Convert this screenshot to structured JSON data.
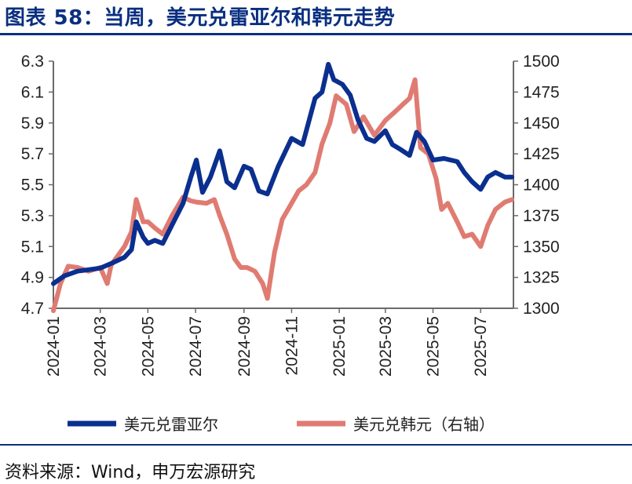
{
  "header": {
    "title": "图表 58：当周，美元兑雷亚尔和韩元走势"
  },
  "footer": {
    "source": "资料来源：Wind，申万宏源研究"
  },
  "colors": {
    "brand": "#0a2f80",
    "series_brl": "#0a2f8f",
    "series_krw": "#e07b72"
  },
  "chart_data": {
    "type": "line",
    "title": "当周，美元兑雷亚尔和韩元走势",
    "x_ticks": [
      "2024-01",
      "2024-03",
      "2024-05",
      "2024-07",
      "2024-09",
      "2024-11",
      "2025-01",
      "2025-03",
      "2025-05",
      "2025-07"
    ],
    "y_left": {
      "range": [
        4.7,
        6.3
      ],
      "ticks": [
        "4.7",
        "4.9",
        "5.1",
        "5.3",
        "5.5",
        "5.7",
        "5.9",
        "6.1",
        "6.3"
      ]
    },
    "y_right": {
      "range": [
        1300,
        1500
      ],
      "ticks": [
        "1300",
        "1325",
        "1350",
        "1375",
        "1400",
        "1425",
        "1450",
        "1475",
        "1500"
      ]
    },
    "grid": false,
    "legend_position": "bottom",
    "series": [
      {
        "name": "美元兑雷亚尔",
        "axis": "left",
        "points": [
          [
            "2024-01-01",
            4.86
          ],
          [
            "2024-01-15",
            4.91
          ],
          [
            "2024-02-01",
            4.94
          ],
          [
            "2024-02-15",
            4.95
          ],
          [
            "2024-03-01",
            4.96
          ],
          [
            "2024-03-15",
            4.99
          ],
          [
            "2024-04-01",
            5.03
          ],
          [
            "2024-04-10",
            5.08
          ],
          [
            "2024-04-16",
            5.26
          ],
          [
            "2024-04-25",
            5.16
          ],
          [
            "2024-05-01",
            5.12
          ],
          [
            "2024-05-10",
            5.14
          ],
          [
            "2024-05-20",
            5.12
          ],
          [
            "2024-06-01",
            5.24
          ],
          [
            "2024-06-15",
            5.38
          ],
          [
            "2024-06-25",
            5.55
          ],
          [
            "2024-07-02",
            5.66
          ],
          [
            "2024-07-10",
            5.45
          ],
          [
            "2024-07-20",
            5.55
          ],
          [
            "2024-08-01",
            5.72
          ],
          [
            "2024-08-10",
            5.52
          ],
          [
            "2024-08-20",
            5.48
          ],
          [
            "2024-09-01",
            5.62
          ],
          [
            "2024-09-10",
            5.6
          ],
          [
            "2024-09-20",
            5.46
          ],
          [
            "2024-10-01",
            5.44
          ],
          [
            "2024-10-15",
            5.62
          ],
          [
            "2024-11-01",
            5.8
          ],
          [
            "2024-11-15",
            5.76
          ],
          [
            "2024-12-01",
            6.06
          ],
          [
            "2024-12-10",
            6.1
          ],
          [
            "2024-12-18",
            6.28
          ],
          [
            "2024-12-25",
            6.18
          ],
          [
            "2025-01-05",
            6.15
          ],
          [
            "2025-01-15",
            6.08
          ],
          [
            "2025-01-25",
            5.92
          ],
          [
            "2025-02-05",
            5.8
          ],
          [
            "2025-02-15",
            5.78
          ],
          [
            "2025-03-01",
            5.85
          ],
          [
            "2025-03-10",
            5.76
          ],
          [
            "2025-03-20",
            5.73
          ],
          [
            "2025-04-01",
            5.69
          ],
          [
            "2025-04-10",
            5.84
          ],
          [
            "2025-04-20",
            5.78
          ],
          [
            "2025-05-01",
            5.66
          ],
          [
            "2025-05-15",
            5.67
          ],
          [
            "2025-06-01",
            5.65
          ],
          [
            "2025-06-10",
            5.58
          ],
          [
            "2025-06-20",
            5.52
          ],
          [
            "2025-07-01",
            5.47
          ],
          [
            "2025-07-10",
            5.55
          ],
          [
            "2025-07-20",
            5.58
          ],
          [
            "2025-08-01",
            5.55
          ],
          [
            "2025-08-10",
            5.55
          ]
        ]
      },
      {
        "name": "美元兑韩元（右轴）",
        "axis": "right",
        "points": [
          [
            "2024-01-01",
            1298
          ],
          [
            "2024-01-10",
            1320
          ],
          [
            "2024-01-20",
            1334
          ],
          [
            "2024-02-01",
            1333
          ],
          [
            "2024-02-15",
            1330
          ],
          [
            "2024-03-01",
            1333
          ],
          [
            "2024-03-10",
            1320
          ],
          [
            "2024-03-15",
            1335
          ],
          [
            "2024-04-01",
            1350
          ],
          [
            "2024-04-10",
            1362
          ],
          [
            "2024-04-16",
            1388
          ],
          [
            "2024-04-25",
            1370
          ],
          [
            "2024-05-01",
            1370
          ],
          [
            "2024-05-10",
            1365
          ],
          [
            "2024-05-20",
            1360
          ],
          [
            "2024-06-01",
            1375
          ],
          [
            "2024-06-15",
            1390
          ],
          [
            "2024-06-25",
            1387
          ],
          [
            "2024-07-02",
            1386
          ],
          [
            "2024-07-15",
            1385
          ],
          [
            "2024-07-25",
            1388
          ],
          [
            "2024-08-01",
            1375
          ],
          [
            "2024-08-10",
            1360
          ],
          [
            "2024-08-20",
            1340
          ],
          [
            "2024-08-28",
            1333
          ],
          [
            "2024-09-05",
            1333
          ],
          [
            "2024-09-15",
            1330
          ],
          [
            "2024-09-25",
            1320
          ],
          [
            "2024-10-01",
            1308
          ],
          [
            "2024-10-10",
            1345
          ],
          [
            "2024-10-20",
            1372
          ],
          [
            "2024-11-01",
            1385
          ],
          [
            "2024-11-10",
            1395
          ],
          [
            "2024-11-20",
            1400
          ],
          [
            "2024-12-01",
            1410
          ],
          [
            "2024-12-10",
            1433
          ],
          [
            "2024-12-20",
            1450
          ],
          [
            "2024-12-28",
            1472
          ],
          [
            "2025-01-10",
            1465
          ],
          [
            "2025-01-20",
            1443
          ],
          [
            "2025-02-01",
            1455
          ],
          [
            "2025-02-15",
            1440
          ],
          [
            "2025-03-01",
            1452
          ],
          [
            "2025-03-15",
            1460
          ],
          [
            "2025-03-25",
            1466
          ],
          [
            "2025-04-01",
            1470
          ],
          [
            "2025-04-08",
            1485
          ],
          [
            "2025-04-15",
            1430
          ],
          [
            "2025-04-25",
            1425
          ],
          [
            "2025-05-05",
            1405
          ],
          [
            "2025-05-12",
            1380
          ],
          [
            "2025-05-20",
            1385
          ],
          [
            "2025-06-01",
            1370
          ],
          [
            "2025-06-10",
            1358
          ],
          [
            "2025-06-20",
            1360
          ],
          [
            "2025-07-01",
            1350
          ],
          [
            "2025-07-10",
            1367
          ],
          [
            "2025-07-20",
            1380
          ],
          [
            "2025-08-01",
            1386
          ],
          [
            "2025-08-10",
            1388
          ]
        ]
      }
    ]
  }
}
